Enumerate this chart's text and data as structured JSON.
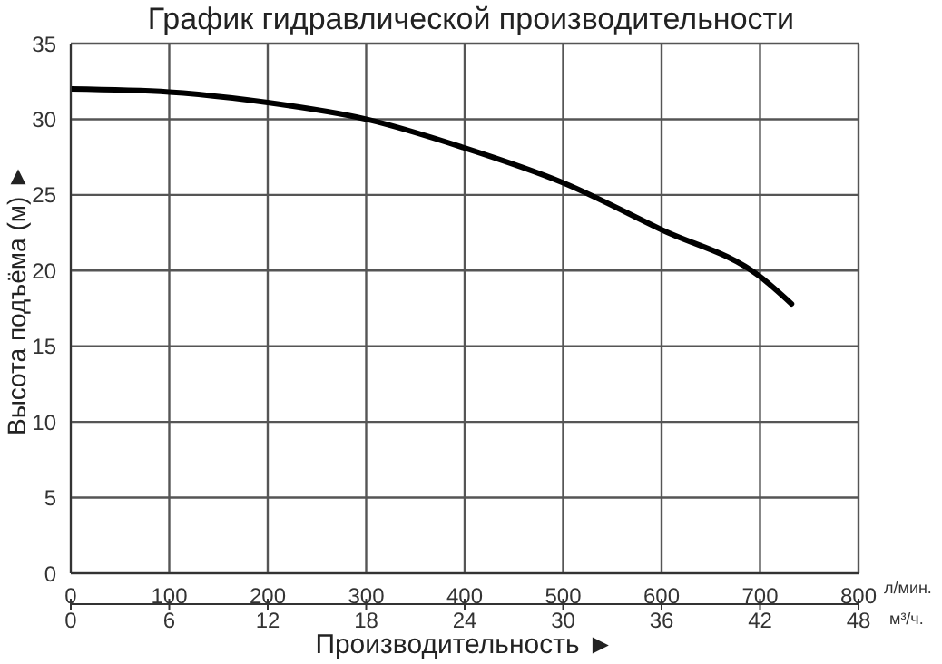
{
  "chart_data": {
    "type": "line",
    "title": "График гидравлической производительности",
    "xlabel": "Производительность ►",
    "ylabel": "Высота подъёма (м) ►",
    "x": [
      0,
      100,
      200,
      300,
      400,
      500,
      600,
      700,
      732
    ],
    "series": [
      {
        "color": "#000000",
        "values": [
          32,
          31.8,
          31.1,
          30,
          28.1,
          25.8,
          22.7,
          19.6,
          17.8
        ]
      }
    ],
    "xlim": [
      0,
      800
    ],
    "xticks": [
      0,
      100,
      200,
      300,
      400,
      500,
      600,
      700,
      800
    ],
    "x2lim": [
      0,
      48
    ],
    "x2ticks": [
      0,
      6,
      12,
      18,
      24,
      30,
      36,
      42,
      48
    ],
    "ylim": [
      0,
      35
    ],
    "yticks": [
      0,
      5,
      10,
      15,
      20,
      25,
      30,
      35
    ],
    "grid": true,
    "marker": "none",
    "line_style": "solid",
    "legend": false,
    "annotations": [
      "л/мин.",
      "м³/ч."
    ]
  }
}
